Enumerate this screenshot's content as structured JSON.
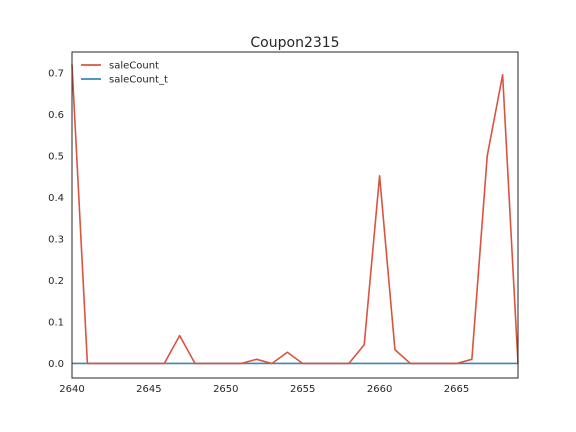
{
  "chart_data": {
    "type": "line",
    "title": "Coupon2315",
    "xlabel": "",
    "ylabel": "",
    "xlim": [
      2640,
      2669
    ],
    "ylim": [
      -0.035,
      0.75
    ],
    "xticks": [
      2640,
      2645,
      2650,
      2655,
      2660,
      2665
    ],
    "yticks": [
      0.0,
      0.1,
      0.2,
      0.3,
      0.4,
      0.5,
      0.6,
      0.7
    ],
    "ytick_labels": [
      "0.0",
      "0.1",
      "0.2",
      "0.3",
      "0.4",
      "0.5",
      "0.6",
      "0.7"
    ],
    "grid": false,
    "legend_position": "top-left",
    "x": [
      2640,
      2641,
      2642,
      2643,
      2644,
      2645,
      2646,
      2647,
      2648,
      2649,
      2650,
      2651,
      2652,
      2653,
      2654,
      2655,
      2656,
      2657,
      2658,
      2659,
      2660,
      2661,
      2662,
      2663,
      2664,
      2665,
      2666,
      2667,
      2668,
      2669
    ],
    "series": [
      {
        "name": "saleCount",
        "color": "#d9543f",
        "values": [
          0.72,
          0.0,
          0.0,
          0.0,
          0.0,
          0.0,
          0.0,
          0.067,
          0.0,
          0.0,
          0.0,
          0.0,
          0.01,
          0.0,
          0.027,
          0.0,
          0.0,
          0.0,
          0.0,
          0.045,
          0.452,
          0.033,
          0.0,
          0.0,
          0.0,
          0.0,
          0.01,
          0.5,
          0.695,
          0.0
        ]
      },
      {
        "name": "saleCount_t",
        "color": "#3a87b8",
        "values": [
          0,
          0,
          0,
          0,
          0,
          0,
          0,
          0,
          0,
          0,
          0,
          0,
          0,
          0,
          0,
          0,
          0,
          0,
          0,
          0,
          0,
          0,
          0,
          0,
          0,
          0,
          0,
          0,
          0,
          0
        ]
      }
    ]
  }
}
